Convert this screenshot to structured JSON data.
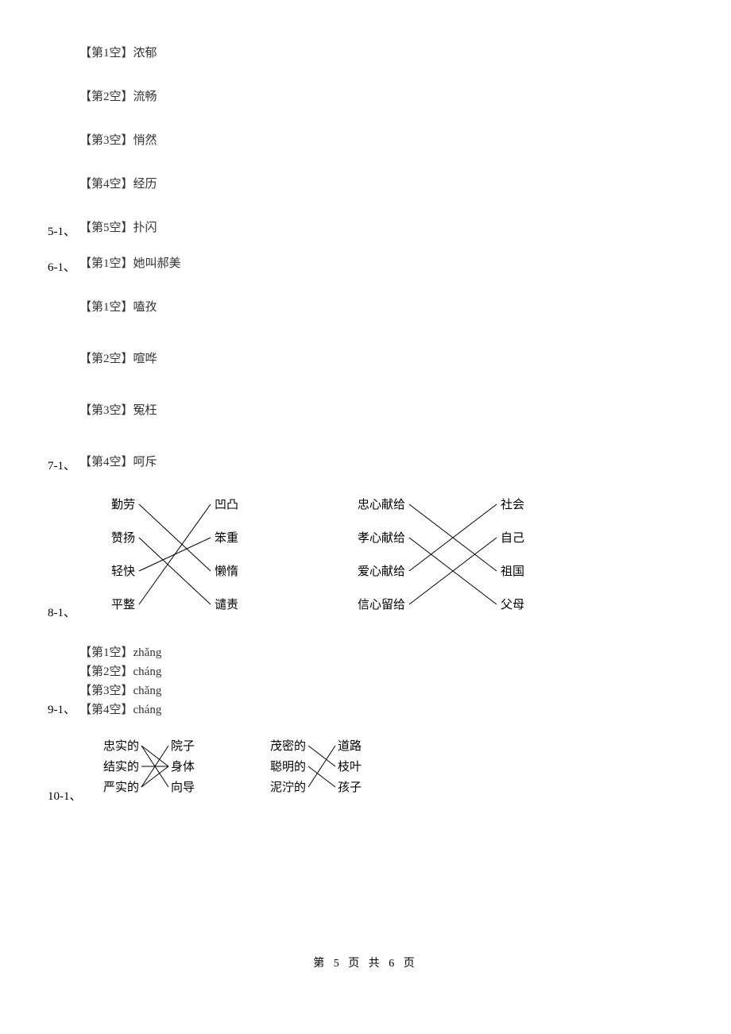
{
  "q5": {
    "label": "5-1、",
    "answers": [
      {
        "slot": "【第1空】",
        "value": "浓郁"
      },
      {
        "slot": "【第2空】",
        "value": "流畅"
      },
      {
        "slot": "【第3空】",
        "value": "悄然"
      },
      {
        "slot": "【第4空】",
        "value": "经历"
      },
      {
        "slot": "【第5空】",
        "value": "扑闪"
      }
    ]
  },
  "q6": {
    "label": "6-1、",
    "answers": [
      {
        "slot": "【第1空】",
        "value": "她叫郝美"
      }
    ]
  },
  "q7": {
    "label": "7-1、",
    "answers": [
      {
        "slot": "【第1空】",
        "value": "嗑孜"
      },
      {
        "slot": "【第2空】",
        "value": "喧哗"
      },
      {
        "slot": "【第3空】",
        "value": "冤枉"
      },
      {
        "slot": "【第4空】",
        "value": "呵斥"
      }
    ]
  },
  "q8": {
    "label": "8-1、",
    "diagram_left": {
      "left_words": [
        "勤劳",
        "赞扬",
        "轻快",
        "平整"
      ],
      "right_words": [
        "凹凸",
        "笨重",
        "懒惰",
        "谴责"
      ],
      "edges": [
        [
          0,
          2
        ],
        [
          1,
          3
        ],
        [
          2,
          1
        ],
        [
          3,
          0
        ]
      ],
      "color": "#000000"
    },
    "diagram_right": {
      "left_words": [
        "忠心献给",
        "孝心献给",
        "爱心献给",
        "信心留给"
      ],
      "right_words": [
        "社会",
        "自己",
        "祖国",
        "父母"
      ],
      "edges": [
        [
          0,
          2
        ],
        [
          1,
          3
        ],
        [
          2,
          0
        ],
        [
          3,
          1
        ]
      ],
      "color": "#000000"
    }
  },
  "q9": {
    "label": "9-1、",
    "answers": [
      {
        "slot": "【第1空】",
        "value": "zhǎng"
      },
      {
        "slot": "【第2空】",
        "value": "cháng"
      },
      {
        "slot": "【第3空】",
        "value": "chǎng"
      },
      {
        "slot": "【第4空】",
        "value": "cháng"
      }
    ]
  },
  "q10": {
    "label": "10-1、",
    "diagram_left": {
      "left_words": [
        "忠实的",
        "结实的",
        "严实的"
      ],
      "right_words": [
        "院子",
        "身体",
        "向导"
      ],
      "edges": [
        [
          0,
          2
        ],
        [
          1,
          1
        ],
        [
          2,
          0
        ],
        [
          2,
          1
        ],
        [
          0,
          1
        ]
      ],
      "color": "#000000"
    },
    "diagram_right": {
      "left_words": [
        "茂密的",
        "聪明的",
        "泥泞的"
      ],
      "right_words": [
        "道路",
        "枝叶",
        "孩子"
      ],
      "edges": [
        [
          0,
          1
        ],
        [
          1,
          2
        ],
        [
          2,
          0
        ]
      ],
      "color": "#000000"
    }
  },
  "footer": "第 5 页 共 6 页"
}
